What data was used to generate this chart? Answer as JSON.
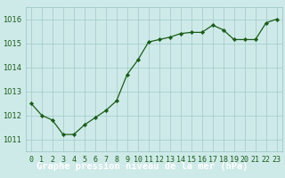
{
  "hours": [
    0,
    1,
    2,
    3,
    4,
    5,
    6,
    7,
    8,
    9,
    10,
    11,
    12,
    13,
    14,
    15,
    16,
    17,
    18,
    19,
    20,
    21,
    22,
    23
  ],
  "pressure": [
    1012.5,
    1012.0,
    1011.8,
    1011.2,
    1011.2,
    1011.6,
    1011.9,
    1012.2,
    1012.6,
    1013.7,
    1014.3,
    1015.05,
    1015.15,
    1015.25,
    1015.4,
    1015.45,
    1015.45,
    1015.75,
    1015.55,
    1015.15,
    1015.15,
    1015.15,
    1015.85,
    1016.0
  ],
  "bg_color": "#ceeae8",
  "line_color": "#1a5c1a",
  "marker_color": "#1a5c1a",
  "grid_color": "#a0c8c8",
  "title": "Graphe pression niveau de la mer (hPa)",
  "ylim": [
    1010.5,
    1016.5
  ],
  "yticks": [
    1011,
    1012,
    1013,
    1014,
    1015,
    1016
  ],
  "xtick_labels": [
    "0",
    "1",
    "2",
    "3",
    "4",
    "5",
    "6",
    "7",
    "8",
    "9",
    "10",
    "11",
    "12",
    "13",
    "14",
    "15",
    "16",
    "17",
    "18",
    "19",
    "20",
    "21",
    "22",
    "23"
  ],
  "title_fontsize": 7.5,
  "tick_fontsize": 6,
  "title_bg": "#2d6e2d",
  "title_text_color": "white",
  "fig_width": 3.2,
  "fig_height": 2.0,
  "dpi": 100
}
